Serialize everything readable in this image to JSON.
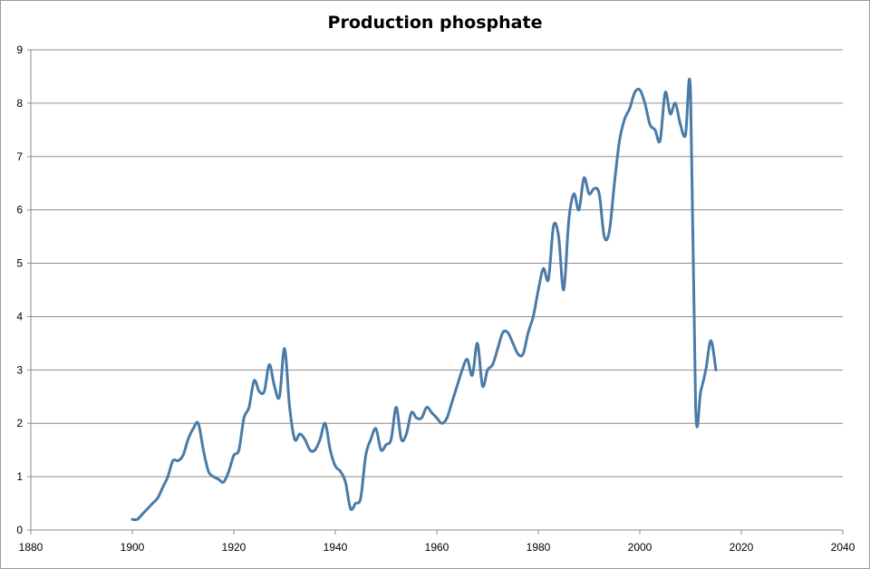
{
  "chart_data": {
    "type": "line",
    "title": "Production phosphate",
    "xlabel": "",
    "ylabel": "",
    "xlim": [
      1880,
      2040
    ],
    "ylim": [
      0,
      9
    ],
    "xticks": [
      1880,
      1900,
      1920,
      1940,
      1960,
      1980,
      2000,
      2020,
      2040
    ],
    "yticks": [
      0,
      1,
      2,
      3,
      4,
      5,
      6,
      7,
      8,
      9
    ],
    "grid": "horizontal",
    "legend": "none",
    "series": [
      {
        "color": "#4a7ba6",
        "x": [
          1900,
          1901,
          1902,
          1903,
          1904,
          1905,
          1906,
          1907,
          1908,
          1909,
          1910,
          1911,
          1912,
          1913,
          1914,
          1915,
          1916,
          1917,
          1918,
          1919,
          1920,
          1921,
          1922,
          1923,
          1924,
          1925,
          1926,
          1927,
          1928,
          1929,
          1930,
          1931,
          1932,
          1933,
          1934,
          1935,
          1936,
          1937,
          1938,
          1939,
          1940,
          1941,
          1942,
          1943,
          1944,
          1945,
          1946,
          1947,
          1948,
          1949,
          1950,
          1951,
          1952,
          1953,
          1954,
          1955,
          1956,
          1957,
          1958,
          1959,
          1960,
          1961,
          1962,
          1963,
          1964,
          1965,
          1966,
          1967,
          1968,
          1969,
          1970,
          1971,
          1972,
          1973,
          1974,
          1975,
          1976,
          1977,
          1978,
          1979,
          1980,
          1981,
          1982,
          1983,
          1984,
          1985,
          1986,
          1987,
          1988,
          1989,
          1990,
          1991,
          1992,
          1993,
          1994,
          1995,
          1996,
          1997,
          1998,
          1999,
          2000,
          2001,
          2002,
          2003,
          2004,
          2005,
          2006,
          2007,
          2008,
          2009,
          2010,
          2011,
          2012,
          2013,
          2014,
          2015
        ],
        "values": [
          0.2,
          0.2,
          0.3,
          0.4,
          0.5,
          0.6,
          0.8,
          1.0,
          1.3,
          1.3,
          1.4,
          1.7,
          1.9,
          2.0,
          1.5,
          1.1,
          1.0,
          0.95,
          0.9,
          1.1,
          1.4,
          1.5,
          2.1,
          2.3,
          2.8,
          2.6,
          2.6,
          3.1,
          2.7,
          2.5,
          3.4,
          2.3,
          1.7,
          1.8,
          1.7,
          1.5,
          1.5,
          1.7,
          2.0,
          1.5,
          1.2,
          1.1,
          0.9,
          0.4,
          0.5,
          0.6,
          1.4,
          1.7,
          1.9,
          1.5,
          1.6,
          1.7,
          2.3,
          1.7,
          1.8,
          2.2,
          2.1,
          2.1,
          2.3,
          2.2,
          2.1,
          2.0,
          2.1,
          2.4,
          2.7,
          3.0,
          3.2,
          2.9,
          3.5,
          2.7,
          3.0,
          3.1,
          3.4,
          3.7,
          3.7,
          3.5,
          3.3,
          3.3,
          3.7,
          4.0,
          4.5,
          4.9,
          4.7,
          5.7,
          5.5,
          4.5,
          5.8,
          6.3,
          6.0,
          6.6,
          6.3,
          6.4,
          6.3,
          5.5,
          5.6,
          6.5,
          7.3,
          7.7,
          7.9,
          8.2,
          8.25,
          8.0,
          7.6,
          7.5,
          7.3,
          8.2,
          7.8,
          8.0,
          7.6,
          7.4,
          8.2,
          2.3,
          2.6,
          3.0,
          3.55,
          3.0
        ]
      }
    ]
  }
}
